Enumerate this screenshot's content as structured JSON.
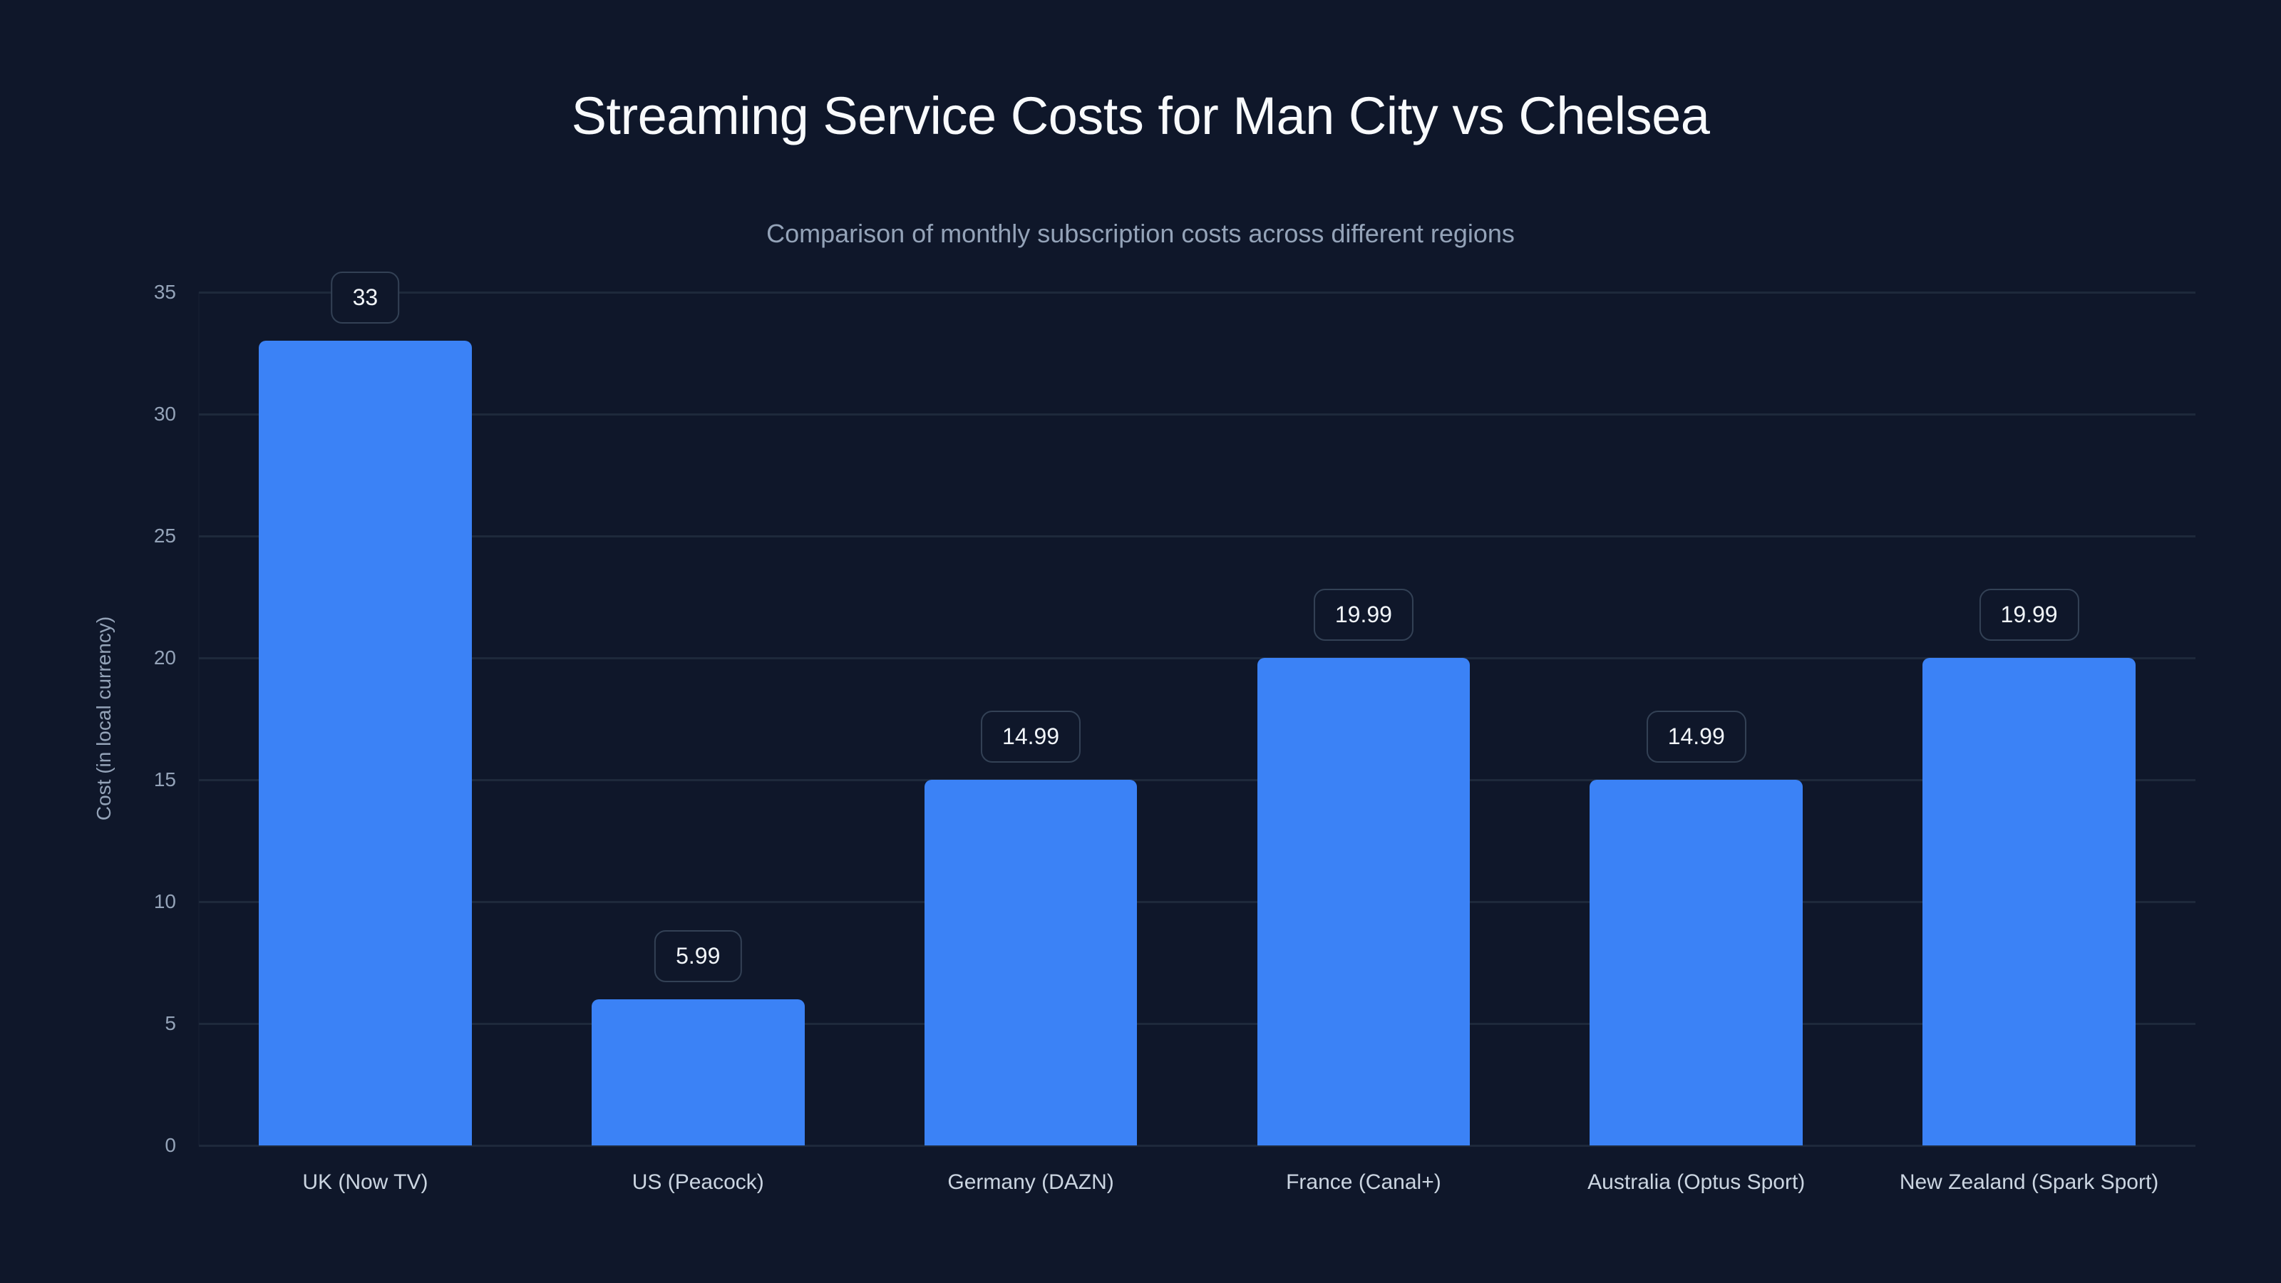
{
  "chart": {
    "title": "Streaming Service Costs for Man City vs Chelsea",
    "subtitle": "Comparison of monthly subscription costs across different regions",
    "y_axis_title": "Cost (in local currency)",
    "y_ticks": [
      "0",
      "5",
      "10",
      "15",
      "20",
      "25",
      "30",
      "35"
    ],
    "bars": [
      {
        "label": "UK (Now TV)",
        "value": 33,
        "display": "33"
      },
      {
        "label": "US (Peacock)",
        "value": 5.99,
        "display": "5.99"
      },
      {
        "label": "Germany (DAZN)",
        "value": 14.99,
        "display": "14.99"
      },
      {
        "label": "France (Canal+)",
        "value": 19.99,
        "display": "19.99"
      },
      {
        "label": "Australia (Optus Sport)",
        "value": 14.99,
        "display": "14.99"
      },
      {
        "label": "New Zealand (Spark Sport)",
        "value": 19.99,
        "display": "19.99"
      }
    ],
    "colors": {
      "background": "#0f172a",
      "bar": "#3b82f6",
      "gridline": "#1e293b",
      "label_border": "#334155",
      "title": "#f8fafc",
      "subtitle": "#94a3b8",
      "tick": "#94a3b8",
      "category_label": "#cbd5e1"
    }
  },
  "chart_data": {
    "type": "bar",
    "title": "Streaming Service Costs for Man City vs Chelsea",
    "subtitle": "Comparison of monthly subscription costs across different regions",
    "categories": [
      "UK (Now TV)",
      "US (Peacock)",
      "Germany (DAZN)",
      "France (Canal+)",
      "Australia (Optus Sport)",
      "New Zealand (Spark Sport)"
    ],
    "values": [
      33,
      5.99,
      14.99,
      19.99,
      14.99,
      19.99
    ],
    "xlabel": "",
    "ylabel": "Cost (in local currency)",
    "ylim": [
      0,
      35
    ],
    "yticks": [
      0,
      5,
      10,
      15,
      20,
      25,
      30,
      35
    ],
    "grid": true,
    "legend": null,
    "data_labels": [
      "33",
      "5.99",
      "14.99",
      "19.99",
      "14.99",
      "19.99"
    ]
  }
}
